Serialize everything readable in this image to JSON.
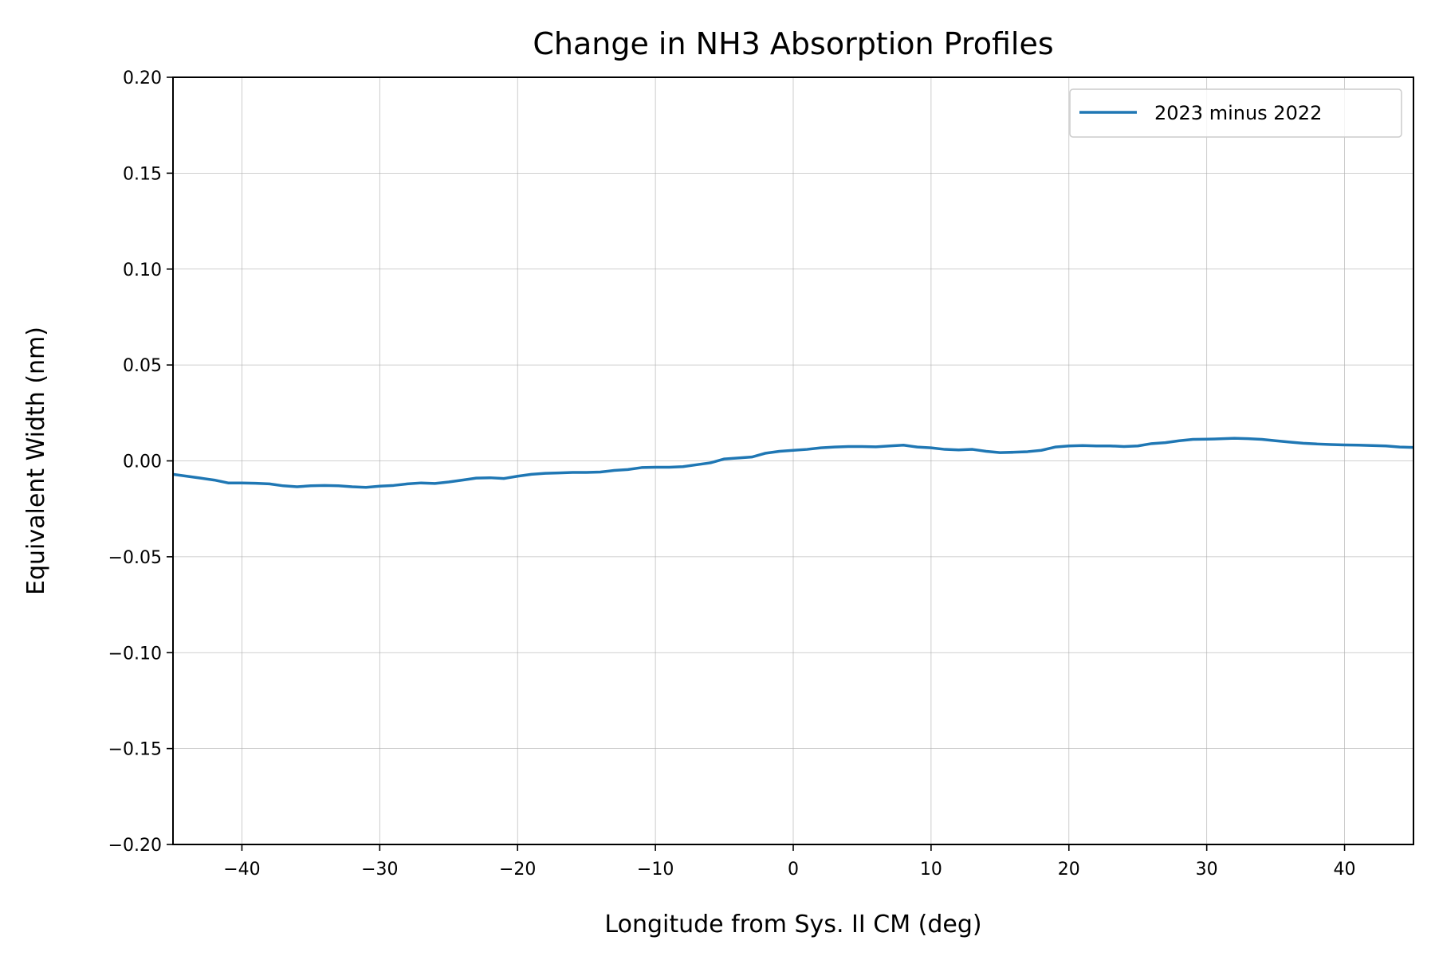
{
  "chart_data": {
    "type": "line",
    "title": "Change in NH3 Absorption Profiles",
    "xlabel": "Longitude from Sys. II CM (deg)",
    "ylabel": "Equivalent Width (nm)",
    "xlim": [
      -45,
      45
    ],
    "ylim": [
      -0.2,
      0.2
    ],
    "xticks": [
      -40,
      -30,
      -20,
      -10,
      0,
      10,
      20,
      30,
      40
    ],
    "xtick_labels": [
      "−40",
      "−30",
      "−20",
      "−10",
      "0",
      "10",
      "20",
      "30",
      "40"
    ],
    "yticks": [
      -0.2,
      -0.15,
      -0.1,
      -0.05,
      0.0,
      0.05,
      0.1,
      0.15,
      0.2
    ],
    "ytick_labels": [
      "−0.20",
      "−0.15",
      "−0.10",
      "−0.05",
      "0.00",
      "0.05",
      "0.10",
      "0.15",
      "0.20"
    ],
    "grid": true,
    "legend_position": "top-right",
    "series": [
      {
        "name": "2023 minus 2022",
        "color": "#1f77b4",
        "x": [
          -45,
          -44,
          -43,
          -42,
          -41,
          -40,
          -39,
          -38,
          -37,
          -36,
          -35,
          -34,
          -33,
          -32,
          -31,
          -30,
          -29,
          -28,
          -27,
          -26,
          -25,
          -24,
          -23,
          -22,
          -21,
          -20,
          -19,
          -18,
          -17,
          -16,
          -15,
          -14,
          -13,
          -12,
          -11,
          -10,
          -9,
          -8,
          -7,
          -6,
          -5,
          -4,
          -3,
          -2,
          -1,
          0,
          1,
          2,
          3,
          4,
          5,
          6,
          7,
          8,
          9,
          10,
          11,
          12,
          13,
          14,
          15,
          16,
          17,
          18,
          19,
          20,
          21,
          22,
          23,
          24,
          25,
          26,
          27,
          28,
          29,
          30,
          31,
          32,
          33,
          34,
          35,
          36,
          37,
          38,
          39,
          40,
          41,
          42,
          43,
          44,
          45
        ],
        "values": [
          -0.007,
          -0.008,
          -0.009,
          -0.01,
          -0.0115,
          -0.0115,
          -0.0117,
          -0.012,
          -0.013,
          -0.0135,
          -0.013,
          -0.0128,
          -0.013,
          -0.0135,
          -0.0138,
          -0.0132,
          -0.0128,
          -0.012,
          -0.0115,
          -0.0118,
          -0.011,
          -0.01,
          -0.009,
          -0.0088,
          -0.0092,
          -0.008,
          -0.007,
          -0.0065,
          -0.0063,
          -0.006,
          -0.006,
          -0.0058,
          -0.005,
          -0.0045,
          -0.0035,
          -0.0033,
          -0.0033,
          -0.003,
          -0.002,
          -0.001,
          0.001,
          0.0015,
          0.002,
          0.004,
          0.005,
          0.0055,
          0.006,
          0.0068,
          0.0072,
          0.0075,
          0.0075,
          0.0073,
          0.0078,
          0.0082,
          0.0072,
          0.0068,
          0.006,
          0.0057,
          0.006,
          0.005,
          0.0043,
          0.0045,
          0.0048,
          0.0055,
          0.0072,
          0.0078,
          0.008,
          0.0078,
          0.0078,
          0.0075,
          0.0078,
          0.009,
          0.0095,
          0.0105,
          0.0112,
          0.0113,
          0.0115,
          0.0118,
          0.0116,
          0.0112,
          0.0105,
          0.0098,
          0.0092,
          0.0088,
          0.0085,
          0.0083,
          0.0082,
          0.008,
          0.0078,
          0.0072,
          0.007
        ]
      }
    ]
  }
}
